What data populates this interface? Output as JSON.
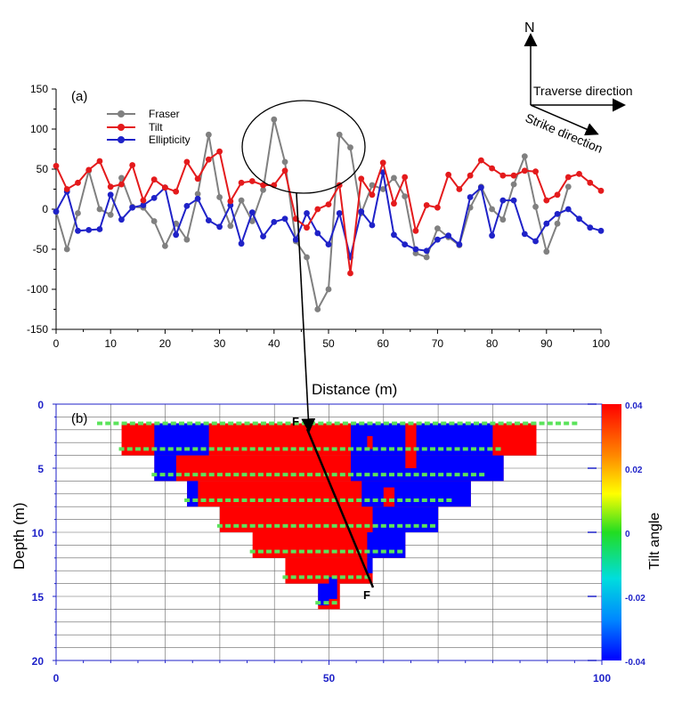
{
  "panel_a": {
    "label": "(a)",
    "xlabel": "Distance (m)",
    "legend": [
      "Fraser",
      "Tilt",
      "Ellipticity"
    ]
  },
  "panel_b": {
    "label": "(b)",
    "ylabel": "Depth (m)",
    "colorbar_label": "Tilt angle",
    "fault_label_top": "F",
    "fault_label_bottom": "F"
  },
  "compass": {
    "north": "N",
    "traverse": "Traverse direction",
    "strike": "Strike direction"
  },
  "colors": {
    "fraser": "#808080",
    "tilt": "#e41a1c",
    "ellipticity": "#1f22c8",
    "positive": "#ff0000",
    "negative": "#0000ff",
    "station_marker": "#5be35b"
  },
  "chart_data": [
    {
      "type": "line",
      "title": "",
      "xlabel": "Distance (m)",
      "ylabel": "",
      "xlim": [
        0,
        100
      ],
      "ylim": [
        -150,
        150
      ],
      "x_ticks": [
        0,
        10,
        20,
        30,
        40,
        50,
        60,
        70,
        80,
        90,
        100
      ],
      "y_ticks": [
        -150,
        -100,
        -50,
        0,
        50,
        100,
        150
      ],
      "legend_position": "top-left",
      "x": [
        0,
        2,
        4,
        6,
        8,
        10,
        12,
        14,
        16,
        18,
        20,
        22,
        24,
        26,
        28,
        30,
        32,
        34,
        36,
        38,
        40,
        42,
        44,
        46,
        48,
        50,
        52,
        54,
        56,
        58,
        60,
        62,
        64,
        66,
        68,
        70,
        72,
        74,
        76,
        78,
        80,
        82,
        84,
        86,
        88,
        90,
        92,
        94,
        96,
        98,
        100
      ],
      "series": [
        {
          "name": "Fraser",
          "color": "#808080",
          "values": [
            -3,
            -50,
            -5,
            48,
            0,
            -7,
            39,
            3,
            2,
            -15,
            -46,
            -18,
            -38,
            19,
            93,
            15,
            -21,
            11,
            -15,
            24,
            112,
            59,
            -40,
            -60,
            -125,
            -100,
            93,
            77,
            -5,
            30,
            25,
            39,
            16,
            -55,
            -60,
            -24,
            -35,
            -45,
            2,
            28,
            0,
            -13,
            31,
            66,
            3,
            -53,
            -18,
            28,
            null,
            null,
            null
          ]
        },
        {
          "name": "Tilt",
          "color": "#e41a1c",
          "values": [
            54,
            25,
            33,
            49,
            60,
            28,
            31,
            55,
            11,
            37,
            27,
            22,
            59,
            38,
            62,
            72,
            10,
            33,
            35,
            30,
            30,
            48,
            -12,
            -23,
            0,
            6,
            30,
            -80,
            38,
            18,
            58,
            7,
            40,
            -27,
            5,
            2,
            43,
            25,
            42,
            61,
            51,
            42,
            42,
            48,
            47,
            11,
            18,
            40,
            44,
            33,
            23
          ]
        },
        {
          "name": "Ellipticity",
          "color": "#1f22c8",
          "values": [
            -3,
            22,
            -27,
            -26,
            -25,
            18,
            -13,
            2,
            5,
            14,
            27,
            -32,
            4,
            13,
            -14,
            -22,
            5,
            -43,
            -4,
            -34,
            -16,
            -12,
            -38,
            -5,
            -30,
            -44,
            -5,
            -60,
            -3,
            -20,
            46,
            -32,
            -44,
            -50,
            -52,
            -38,
            -33,
            -44,
            15,
            27,
            -33,
            11,
            11,
            -31,
            -40,
            -18,
            -6,
            0,
            -12,
            -23,
            -27
          ]
        }
      ]
    },
    {
      "type": "heatmap",
      "title": "",
      "xlabel": "",
      "ylabel": "Depth (m)",
      "xlim": [
        0,
        100
      ],
      "ylim": [
        0,
        20
      ],
      "x_ticks": [
        0,
        50,
        100
      ],
      "y_ticks": [
        0,
        5,
        10,
        15,
        20
      ],
      "colorbar": {
        "label": "Tilt angle",
        "min": -0.04,
        "max": 0.04,
        "ticks": [
          "0.04",
          "0.02",
          "0",
          "-0.02",
          "-0.04"
        ]
      },
      "pseudosection_levels": [
        {
          "depth": 2,
          "x_start": 12,
          "x_end": 88
        },
        {
          "depth": 4,
          "x_start": 18,
          "x_end": 82
        },
        {
          "depth": 6,
          "x_start": 24,
          "x_end": 76
        },
        {
          "depth": 8,
          "x_start": 30,
          "x_end": 70
        },
        {
          "depth": 10,
          "x_start": 36,
          "x_end": 64
        },
        {
          "depth": 12,
          "x_start": 42,
          "x_end": 58
        },
        {
          "depth": 14,
          "x_start": 48,
          "x_end": 52
        }
      ],
      "station_depths": [
        1.5,
        3.5,
        5.5,
        7.5,
        9.5,
        11.5,
        13.5,
        15.5
      ],
      "fault_line": {
        "x": [
          46,
          58
        ],
        "depth": [
          1.5,
          14.2
        ]
      }
    }
  ]
}
